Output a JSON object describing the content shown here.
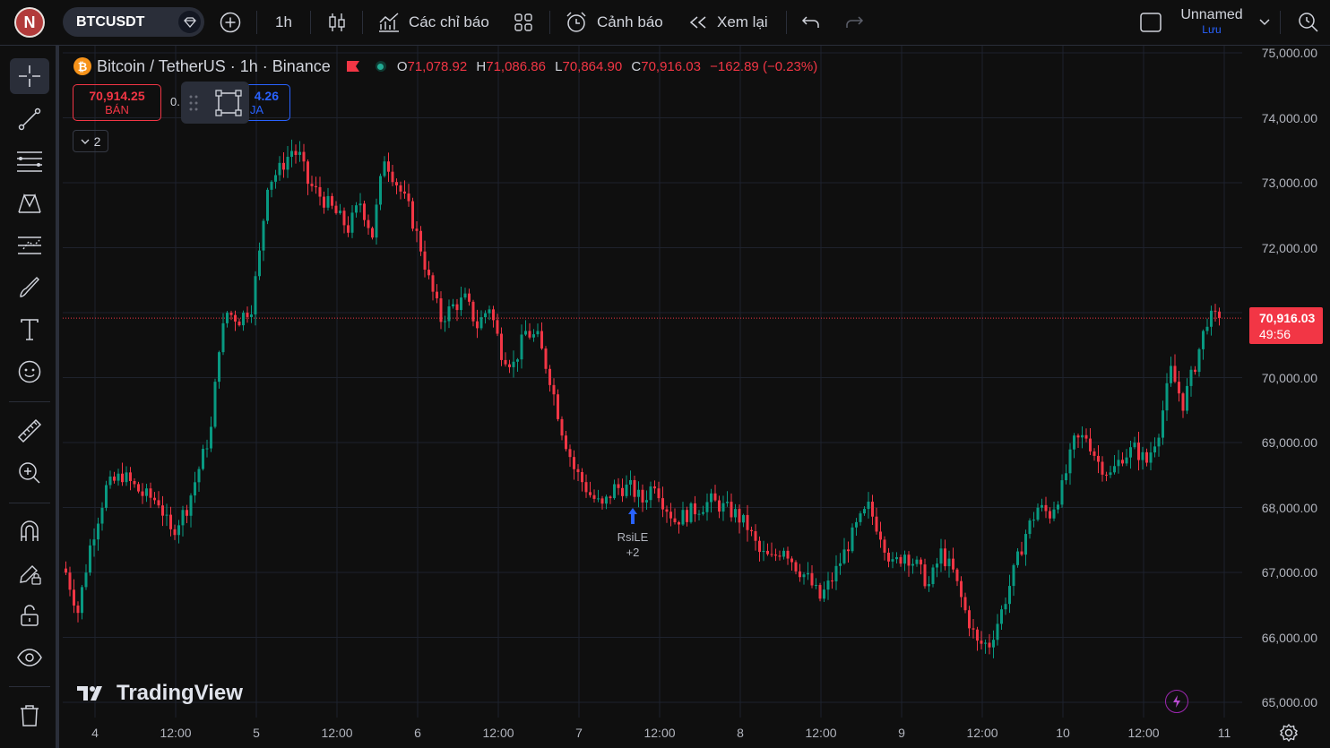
{
  "user": {
    "initial": "N"
  },
  "toolbar": {
    "symbol": "BTCUSDT",
    "interval": "1h",
    "indicators_label": "Các chỉ báo",
    "alert_label": "Cảnh báo",
    "replay_label": "Xem lại",
    "layout_name": "Unnamed",
    "save_label": "Lưu"
  },
  "legend": {
    "title": "Bitcoin / TetherUS · 1h · Binance",
    "o_label": "O",
    "o_value": "71,078.92",
    "h_label": "H",
    "h_value": "71,086.86",
    "l_label": "L",
    "l_value": "70,864.90",
    "c_label": "C",
    "c_value": "70,916.03",
    "change": "−162.89 (−0.23%)",
    "collapse_count": "2"
  },
  "trade": {
    "sell_price": "70,914.25",
    "sell_label": "BÁN",
    "spread_prefix": "0.",
    "buy_price": "4.26",
    "buy_label": "JA"
  },
  "last_price": {
    "value": "70,916.03",
    "countdown": "49:56"
  },
  "marker": {
    "label": "RsiLE",
    "count": "+2"
  },
  "watermark": "TradingView",
  "colors": {
    "up": "#089981",
    "down": "#f23645",
    "background": "#0f0f0f",
    "grid": "#1e222d"
  },
  "chart_data": {
    "type": "candlestick",
    "symbol": "Bitcoin / TetherUS",
    "interval": "1h",
    "exchange": "Binance",
    "y_ticks": [
      75000,
      74000,
      73000,
      72000,
      71000,
      70000,
      69000,
      68000,
      67000,
      66000,
      65000
    ],
    "y_tick_labels": [
      "75,000.00",
      "74,000.00",
      "73,000.00",
      "72,000.00",
      "71,000.00",
      "70,000.00",
      "69,000.00",
      "68,000.00",
      "67,000.00",
      "66,000.00",
      "65,000.00"
    ],
    "ylim": [
      64850,
      75100
    ],
    "x_tick_labels": [
      "4",
      "12:00",
      "5",
      "12:00",
      "6",
      "12:00",
      "7",
      "12:00",
      "8",
      "12:00",
      "9",
      "12:00",
      "10",
      "12:00",
      "11"
    ],
    "last_price": 70916.03,
    "anchors": [
      [
        0,
        67000
      ],
      [
        3,
        66400
      ],
      [
        6,
        67400
      ],
      [
        10,
        68300
      ],
      [
        14,
        68500
      ],
      [
        19,
        68200
      ],
      [
        23,
        68100
      ],
      [
        26,
        67600
      ],
      [
        30,
        68000
      ],
      [
        33,
        68600
      ],
      [
        36,
        69200
      ],
      [
        38,
        70500
      ],
      [
        40,
        71000
      ],
      [
        43,
        70900
      ],
      [
        46,
        71100
      ],
      [
        48,
        71900
      ],
      [
        50,
        73000
      ],
      [
        53,
        73200
      ],
      [
        56,
        73500
      ],
      [
        58,
        73400
      ],
      [
        60,
        73000
      ],
      [
        63,
        72800
      ],
      [
        66,
        72600
      ],
      [
        70,
        72300
      ],
      [
        73,
        72700
      ],
      [
        76,
        72200
      ],
      [
        79,
        73400
      ],
      [
        82,
        73000
      ],
      [
        85,
        72600
      ],
      [
        88,
        72000
      ],
      [
        90,
        71500
      ],
      [
        93,
        70900
      ],
      [
        96,
        71100
      ],
      [
        99,
        71200
      ],
      [
        102,
        70800
      ],
      [
        105,
        71100
      ],
      [
        108,
        70400
      ],
      [
        111,
        70200
      ],
      [
        114,
        70700
      ],
      [
        117,
        70600
      ],
      [
        120,
        70000
      ],
      [
        123,
        69200
      ],
      [
        126,
        68600
      ],
      [
        130,
        68200
      ],
      [
        133,
        68000
      ],
      [
        136,
        68300
      ],
      [
        140,
        68300
      ],
      [
        143,
        68100
      ],
      [
        146,
        68400
      ],
      [
        148,
        68100
      ],
      [
        151,
        67800
      ],
      [
        154,
        67900
      ],
      [
        157,
        68000
      ],
      [
        160,
        68100
      ],
      [
        163,
        68000
      ],
      [
        166,
        67900
      ],
      [
        169,
        67700
      ],
      [
        172,
        67300
      ],
      [
        175,
        67200
      ],
      [
        178,
        67400
      ],
      [
        181,
        67100
      ],
      [
        184,
        66900
      ],
      [
        187,
        66600
      ],
      [
        190,
        66900
      ],
      [
        193,
        67300
      ],
      [
        196,
        67700
      ],
      [
        199,
        68000
      ],
      [
        202,
        67600
      ],
      [
        205,
        67100
      ],
      [
        208,
        67300
      ],
      [
        211,
        67100
      ],
      [
        214,
        66800
      ],
      [
        217,
        67300
      ],
      [
        220,
        67000
      ],
      [
        223,
        66400
      ],
      [
        226,
        65900
      ],
      [
        229,
        65900
      ],
      [
        232,
        66400
      ],
      [
        235,
        67000
      ],
      [
        238,
        67600
      ],
      [
        241,
        68000
      ],
      [
        244,
        67900
      ],
      [
        247,
        68300
      ],
      [
        250,
        69000
      ],
      [
        253,
        69100
      ],
      [
        256,
        68700
      ],
      [
        259,
        68500
      ],
      [
        262,
        68800
      ],
      [
        265,
        68900
      ],
      [
        268,
        68700
      ],
      [
        271,
        69200
      ],
      [
        274,
        70100
      ],
      [
        277,
        69600
      ],
      [
        280,
        70200
      ],
      [
        283,
        70900
      ],
      [
        286,
        70916
      ]
    ]
  }
}
